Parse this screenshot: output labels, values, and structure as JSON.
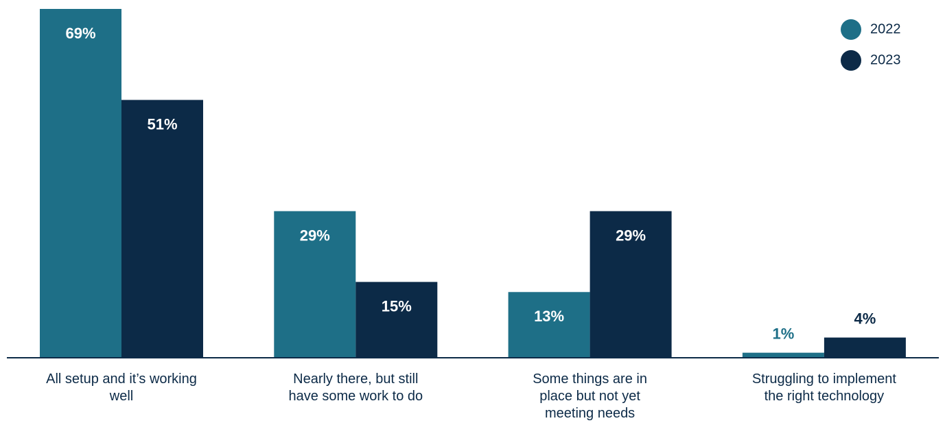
{
  "chart_data": {
    "type": "bar",
    "categories": [
      "All setup and it’s working well",
      "Nearly there, but still have some work to do",
      "Some things are in place but not yet meeting needs",
      "Struggling to implement the right technology"
    ],
    "series": [
      {
        "name": "2022",
        "color": "#1e6f87",
        "values": [
          69,
          29,
          13,
          1
        ],
        "value_labels": [
          "69%",
          "29%",
          "13%",
          "1%"
        ]
      },
      {
        "name": "2023",
        "color": "#0c2a47",
        "values": [
          51,
          15,
          29,
          4
        ],
        "value_labels": [
          "51%",
          "15%",
          "29%",
          "4%"
        ]
      }
    ],
    "legend": "top-right"
  }
}
